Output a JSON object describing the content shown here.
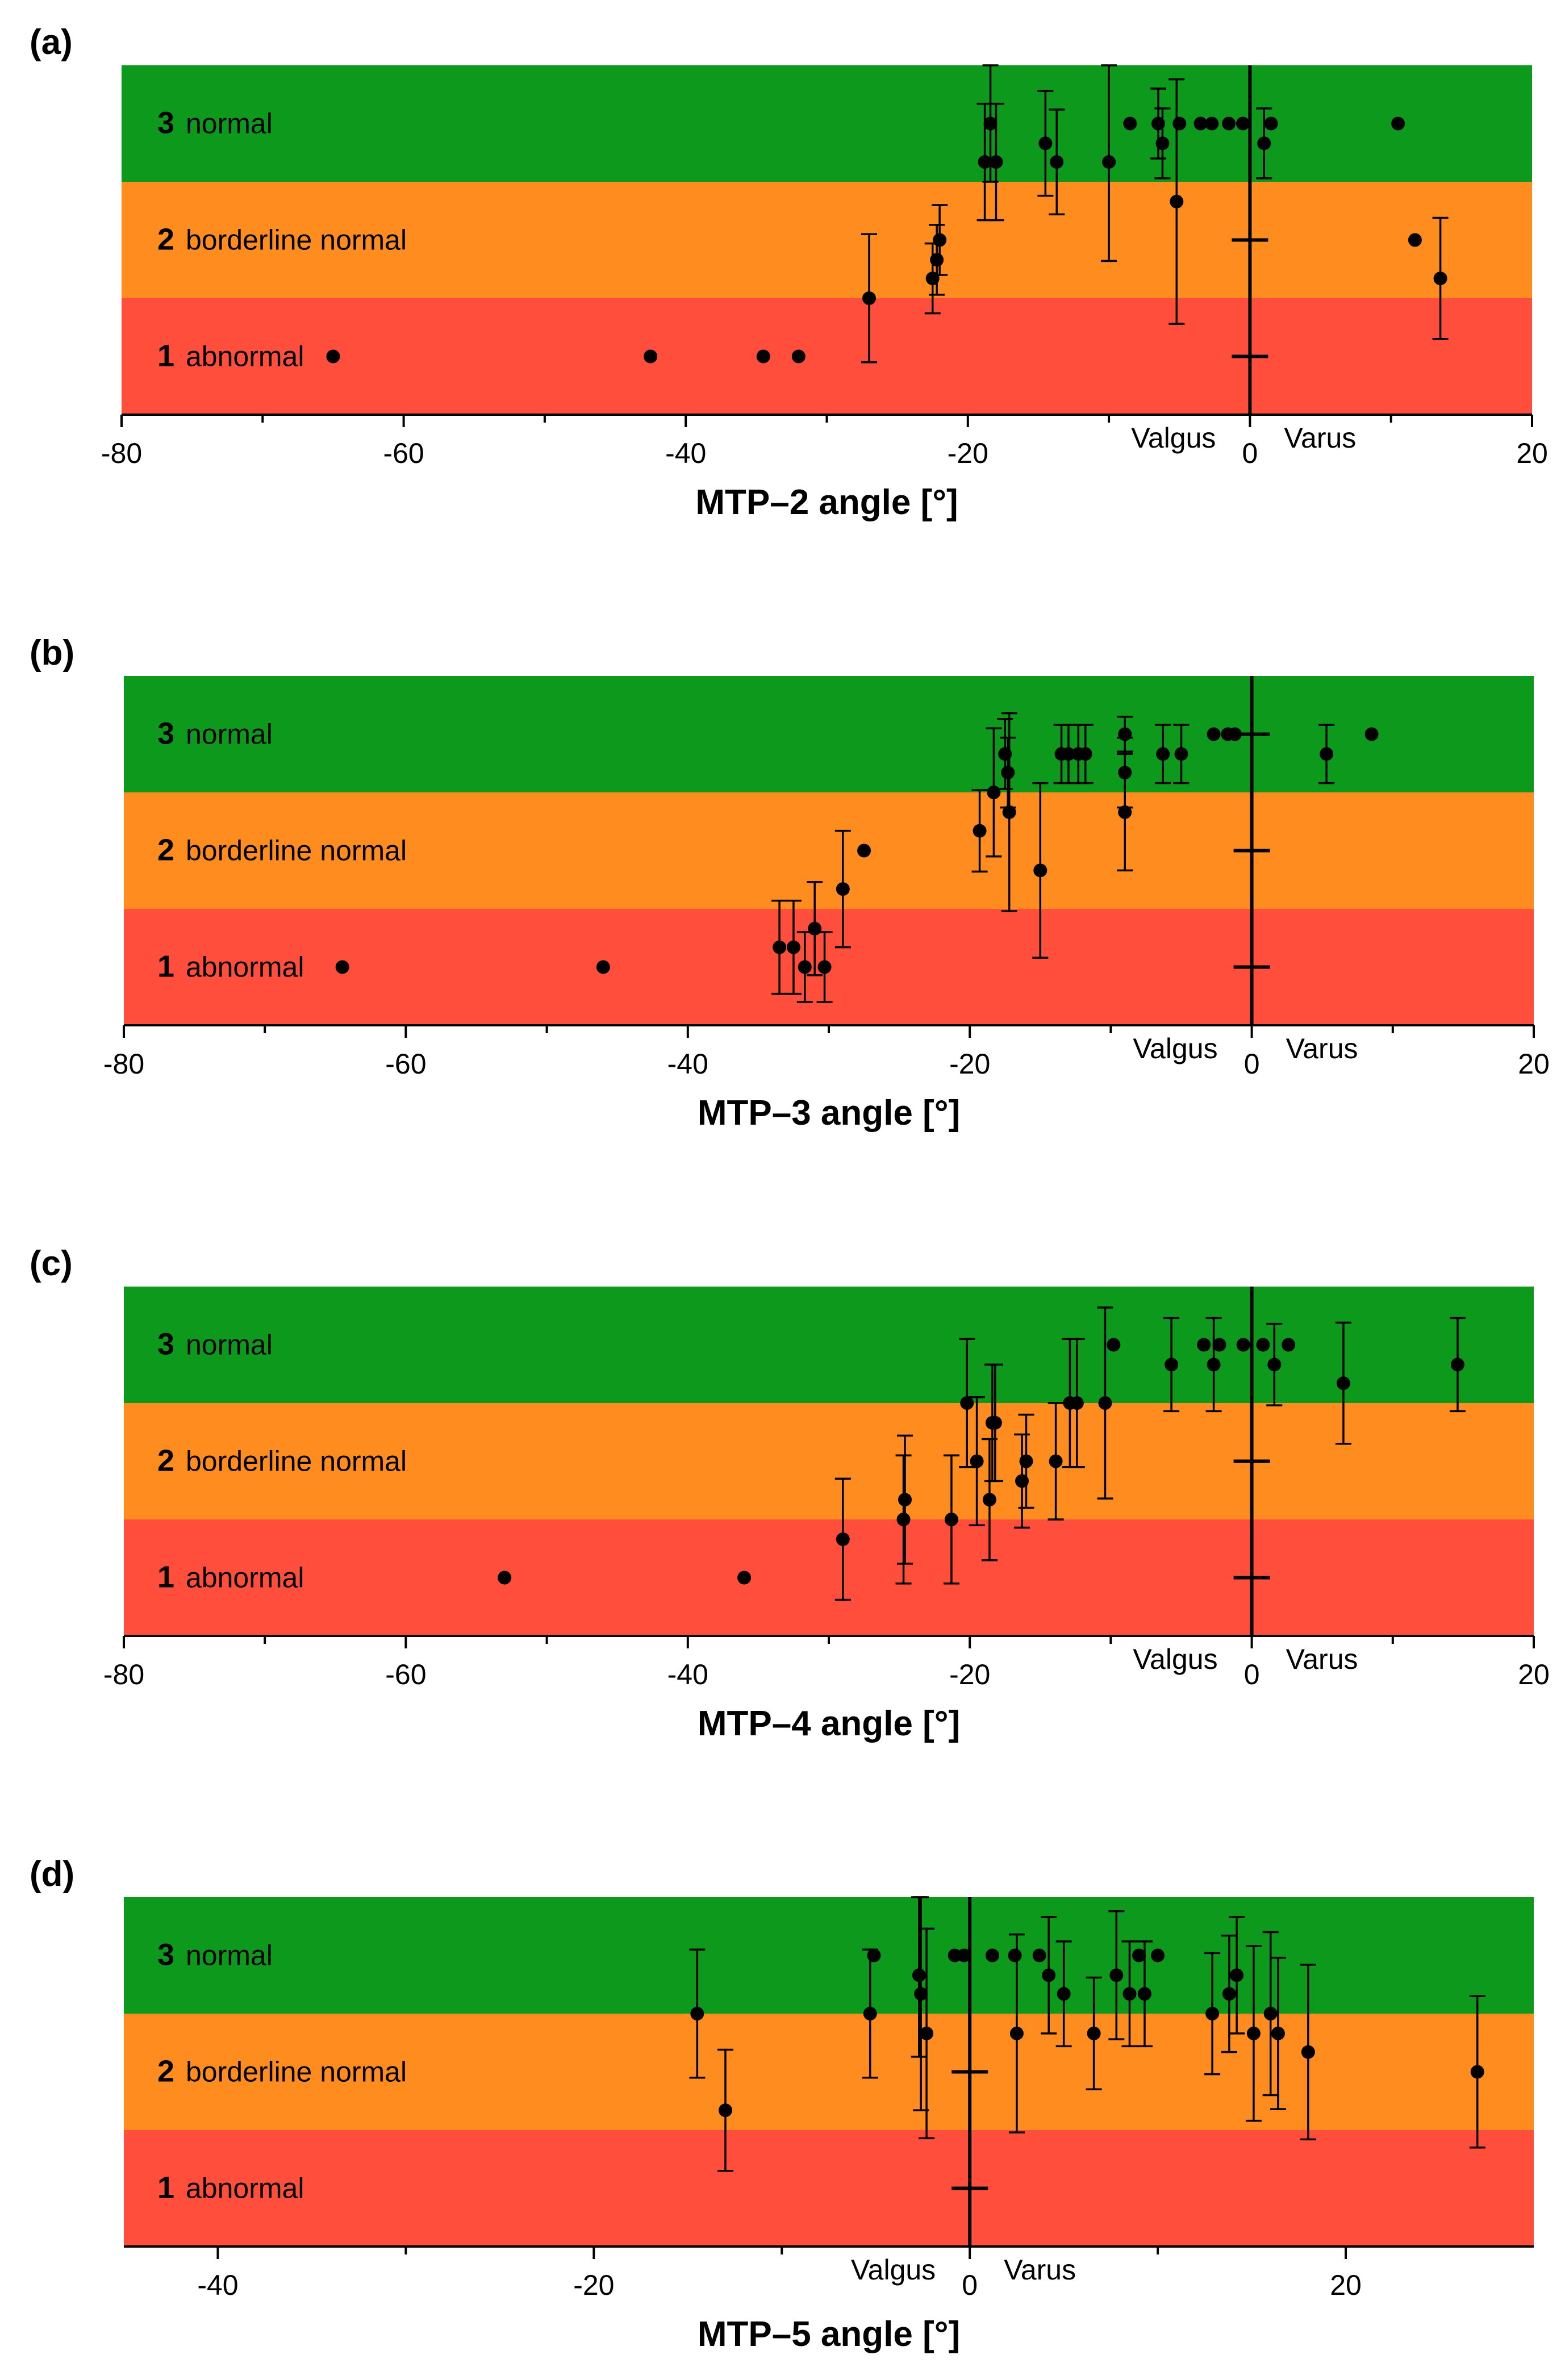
{
  "figure": {
    "band_colors": {
      "normal": "#0d9a1c",
      "borderline": "#ff8c1f",
      "abnormal": "#ff4f3c"
    },
    "bands": [
      {
        "score": "3",
        "label": "normal"
      },
      {
        "score": "2",
        "label": "borderline normal"
      },
      {
        "score": "1",
        "label": "abnormal"
      }
    ],
    "direction_labels": {
      "left": "Valgus",
      "right": "Varus"
    }
  },
  "chart_data": [
    {
      "type": "scatter",
      "panel": "(a)",
      "xlabel": "MTP–2 angle [°]",
      "ylabel": "",
      "xlim": [
        -80,
        20
      ],
      "xticks": [
        -80,
        -60,
        -40,
        -20,
        0,
        20
      ],
      "xticks_minor": [
        -70,
        -50,
        -30,
        -10,
        10
      ],
      "ylim": [
        0.5,
        3.5
      ],
      "zero_line": 0,
      "reference_marks": [
        {
          "x": 0,
          "y": 1
        },
        {
          "x": 0,
          "y": 2
        }
      ],
      "points": [
        {
          "x": -65,
          "y": 1.0
        },
        {
          "x": -42.5,
          "y": 1.0
        },
        {
          "x": -34.5,
          "y": 1.0
        },
        {
          "x": -32,
          "y": 1.0
        },
        {
          "x": -27,
          "y": 1.5,
          "err": 0.55
        },
        {
          "x": -22.5,
          "y": 1.67,
          "err": 0.3
        },
        {
          "x": -22.2,
          "y": 1.83,
          "err": 0.3
        },
        {
          "x": -22,
          "y": 2.0,
          "err": 0.3
        },
        {
          "x": -18.8,
          "y": 2.67,
          "err": 0.5
        },
        {
          "x": -18.4,
          "y": 3.0,
          "err": 0.5
        },
        {
          "x": -18,
          "y": 2.67,
          "err": 0.5
        },
        {
          "x": -14.5,
          "y": 2.83,
          "err": 0.45
        },
        {
          "x": -13.7,
          "y": 2.67,
          "err": 0.45
        },
        {
          "x": -10,
          "y": 2.67,
          "err": 0.85
        },
        {
          "x": -8.5,
          "y": 3.0
        },
        {
          "x": -6.5,
          "y": 3.0,
          "err": 0.3
        },
        {
          "x": -6.2,
          "y": 2.83,
          "err": 0.3
        },
        {
          "x": -5.2,
          "y": 2.33,
          "err": 1.05
        },
        {
          "x": -5,
          "y": 3.0
        },
        {
          "x": -3.5,
          "y": 3.0
        },
        {
          "x": -2.7,
          "y": 3.0
        },
        {
          "x": -1.5,
          "y": 3.0
        },
        {
          "x": -0.5,
          "y": 3.0
        },
        {
          "x": 1,
          "y": 2.83,
          "err": 0.3
        },
        {
          "x": 1.5,
          "y": 3.0
        },
        {
          "x": 10.5,
          "y": 3.0
        },
        {
          "x": 11.7,
          "y": 2.0
        },
        {
          "x": 13.5,
          "y": 1.67,
          "err": 0.52
        }
      ]
    },
    {
      "type": "scatter",
      "panel": "(b)",
      "xlabel": "MTP–3 angle [°]",
      "ylabel": "",
      "xlim": [
        -80,
        20
      ],
      "xticks": [
        -80,
        -60,
        -40,
        -20,
        0,
        20
      ],
      "xticks_minor": [
        -70,
        -50,
        -30,
        -10,
        10
      ],
      "ylim": [
        0.5,
        3.5
      ],
      "zero_line": 0,
      "reference_marks": [
        {
          "x": 0,
          "y": 1
        },
        {
          "x": 0,
          "y": 2
        },
        {
          "x": 0,
          "y": 3
        }
      ],
      "points": [
        {
          "x": -64.5,
          "y": 1.0
        },
        {
          "x": -46,
          "y": 1.0
        },
        {
          "x": -33.5,
          "y": 1.17,
          "err": 0.4
        },
        {
          "x": -32.5,
          "y": 1.17,
          "err": 0.4
        },
        {
          "x": -31.7,
          "y": 1.0,
          "err": 0.3
        },
        {
          "x": -31,
          "y": 1.33,
          "err": 0.4
        },
        {
          "x": -30.3,
          "y": 1.0,
          "err": 0.3
        },
        {
          "x": -29,
          "y": 1.67,
          "err": 0.5
        },
        {
          "x": -27.5,
          "y": 2.0
        },
        {
          "x": -19.3,
          "y": 2.17,
          "err": 0.35
        },
        {
          "x": -18.3,
          "y": 2.5,
          "err": 0.55
        },
        {
          "x": -17.5,
          "y": 2.83,
          "err": 0.3
        },
        {
          "x": -17.3,
          "y": 2.67,
          "err": 0.3
        },
        {
          "x": -17.2,
          "y": 2.33,
          "err": 0.85
        },
        {
          "x": -15,
          "y": 1.83,
          "err": 0.75
        },
        {
          "x": -13.5,
          "y": 2.83,
          "err": 0.25
        },
        {
          "x": -13,
          "y": 2.83,
          "err": 0.25
        },
        {
          "x": -12.3,
          "y": 2.83,
          "err": 0.25
        },
        {
          "x": -11.8,
          "y": 2.83,
          "err": 0.25
        },
        {
          "x": -9,
          "y": 3.0,
          "err": 0.15
        },
        {
          "x": -9,
          "y": 2.67,
          "err": 0.3
        },
        {
          "x": -9,
          "y": 2.33,
          "err": 0.5
        },
        {
          "x": -6.3,
          "y": 2.83,
          "err": 0.25
        },
        {
          "x": -5,
          "y": 2.83,
          "err": 0.25
        },
        {
          "x": -2.7,
          "y": 3.0
        },
        {
          "x": -1.7,
          "y": 3.0
        },
        {
          "x": -1.2,
          "y": 3.0
        },
        {
          "x": 5.3,
          "y": 2.83,
          "err": 0.25
        },
        {
          "x": 8.5,
          "y": 3.0
        }
      ]
    },
    {
      "type": "scatter",
      "panel": "(c)",
      "xlabel": "MTP–4 angle [°]",
      "ylabel": "",
      "xlim": [
        -80,
        20
      ],
      "xticks": [
        -80,
        -60,
        -40,
        -20,
        0,
        20
      ],
      "xticks_minor": [
        -70,
        -50,
        -30,
        -10,
        10
      ],
      "ylim": [
        0.5,
        3.5
      ],
      "zero_line": 0,
      "reference_marks": [
        {
          "x": 0,
          "y": 1
        },
        {
          "x": 0,
          "y": 2
        }
      ],
      "points": [
        {
          "x": -53,
          "y": 1.0
        },
        {
          "x": -36,
          "y": 1.0
        },
        {
          "x": -29,
          "y": 1.33,
          "err": 0.52
        },
        {
          "x": -24.7,
          "y": 1.5,
          "err": 0.55
        },
        {
          "x": -24.6,
          "y": 1.67,
          "err": 0.55
        },
        {
          "x": -21.3,
          "y": 1.5,
          "err": 0.55
        },
        {
          "x": -20.2,
          "y": 2.5,
          "err": 0.55
        },
        {
          "x": -19.5,
          "y": 2.0,
          "err": 0.55
        },
        {
          "x": -18.6,
          "y": 1.67,
          "err": 0.52
        },
        {
          "x": -18.4,
          "y": 2.33,
          "err": 0.5
        },
        {
          "x": -18.2,
          "y": 2.33,
          "err": 0.5
        },
        {
          "x": -16.3,
          "y": 1.83,
          "err": 0.4
        },
        {
          "x": -16,
          "y": 2.0,
          "err": 0.4
        },
        {
          "x": -13.9,
          "y": 2.0,
          "err": 0.5
        },
        {
          "x": -12.9,
          "y": 2.5,
          "err": 0.55
        },
        {
          "x": -12.4,
          "y": 2.5,
          "err": 0.55
        },
        {
          "x": -10.4,
          "y": 2.5,
          "err": 0.82
        },
        {
          "x": -9.8,
          "y": 3.0
        },
        {
          "x": -5.7,
          "y": 2.83,
          "err": 0.4
        },
        {
          "x": -3.4,
          "y": 3.0
        },
        {
          "x": -2.7,
          "y": 2.83,
          "err": 0.4
        },
        {
          "x": -2.3,
          "y": 3.0
        },
        {
          "x": -0.6,
          "y": 3.0
        },
        {
          "x": 0.8,
          "y": 3.0
        },
        {
          "x": 1.6,
          "y": 2.83,
          "err": 0.35
        },
        {
          "x": 2.6,
          "y": 3.0
        },
        {
          "x": 6.5,
          "y": 2.67,
          "err": 0.52
        },
        {
          "x": 14.6,
          "y": 2.83,
          "err": 0.4
        }
      ]
    },
    {
      "type": "scatter",
      "panel": "(d)",
      "xlabel": "MTP–5 angle [°]",
      "ylabel": "",
      "xlim": [
        -45,
        30
      ],
      "xticks": [
        -40,
        -20,
        0,
        20
      ],
      "xticks_minor": [
        -30,
        -10,
        10
      ],
      "ylim": [
        0.5,
        3.5
      ],
      "zero_line": 0,
      "reference_marks": [
        {
          "x": 0,
          "y": 1
        },
        {
          "x": 0,
          "y": 2
        }
      ],
      "points": [
        {
          "x": -14.5,
          "y": 2.5,
          "err": 0.55
        },
        {
          "x": -13,
          "y": 1.67,
          "err": 0.52
        },
        {
          "x": -5.3,
          "y": 2.5,
          "err": 0.55
        },
        {
          "x": -5.1,
          "y": 3.0
        },
        {
          "x": -2.7,
          "y": 2.83,
          "err": 0.7
        },
        {
          "x": -2.6,
          "y": 2.67,
          "err": 1.0
        },
        {
          "x": -2.3,
          "y": 2.33,
          "err": 0.9
        },
        {
          "x": -0.8,
          "y": 3.0
        },
        {
          "x": -0.3,
          "y": 3.0
        },
        {
          "x": 1.2,
          "y": 3.0
        },
        {
          "x": 2.4,
          "y": 3.0
        },
        {
          "x": 2.5,
          "y": 2.33,
          "err": 0.85
        },
        {
          "x": 3.7,
          "y": 3.0
        },
        {
          "x": 4.2,
          "y": 2.83,
          "err": 0.5
        },
        {
          "x": 5,
          "y": 2.67,
          "err": 0.45
        },
        {
          "x": 6.6,
          "y": 2.33,
          "err": 0.48
        },
        {
          "x": 7.8,
          "y": 2.83,
          "err": 0.55
        },
        {
          "x": 8.5,
          "y": 2.67,
          "err": 0.45
        },
        {
          "x": 9,
          "y": 3.0
        },
        {
          "x": 9.3,
          "y": 2.67,
          "err": 0.45
        },
        {
          "x": 10,
          "y": 3.0
        },
        {
          "x": 12.9,
          "y": 2.5,
          "err": 0.52
        },
        {
          "x": 13.8,
          "y": 2.67,
          "err": 0.5
        },
        {
          "x": 14.2,
          "y": 2.83,
          "err": 0.5
        },
        {
          "x": 15.1,
          "y": 2.33,
          "err": 0.75
        },
        {
          "x": 16,
          "y": 2.5,
          "err": 0.7
        },
        {
          "x": 16.4,
          "y": 2.33,
          "err": 0.65
        },
        {
          "x": 18,
          "y": 2.17,
          "err": 0.75
        },
        {
          "x": 27,
          "y": 2.0,
          "err": 0.65
        }
      ]
    }
  ]
}
